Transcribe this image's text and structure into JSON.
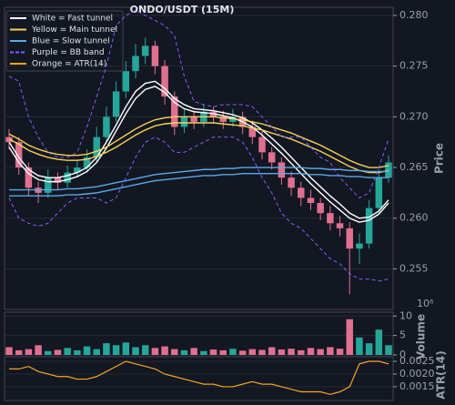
{
  "chart_data": {
    "type": "candlestick",
    "title": "ONDO/USDT (15M)",
    "y_label": "Price",
    "up_color": "#26a69a",
    "down_color": "#e0708f",
    "grid": true,
    "ylim": [
      0.251,
      0.2808
    ],
    "yticks": [
      {
        "value": 0.255,
        "label": "0.255"
      },
      {
        "value": 0.26,
        "label": "0.260"
      },
      {
        "value": 0.265,
        "label": "0.265"
      },
      {
        "value": 0.27,
        "label": "0.270"
      },
      {
        "value": 0.275,
        "label": "0.275"
      },
      {
        "value": 0.28,
        "label": "0.280"
      }
    ],
    "open": [
      0.268,
      0.2675,
      0.265,
      0.263,
      0.2625,
      0.264,
      0.2635,
      0.2645,
      0.265,
      0.266,
      0.268,
      0.27,
      0.2725,
      0.2745,
      0.276,
      0.277,
      0.275,
      0.272,
      0.269,
      0.27,
      0.2695,
      0.2705,
      0.27,
      0.2695,
      0.27,
      0.269,
      0.268,
      0.2665,
      0.2655,
      0.264,
      0.263,
      0.262,
      0.2615,
      0.2605,
      0.2595,
      0.259,
      0.257,
      0.2575,
      0.261,
      0.264
    ],
    "high": [
      0.2688,
      0.268,
      0.2655,
      0.2636,
      0.2648,
      0.2645,
      0.2652,
      0.2658,
      0.2668,
      0.269,
      0.271,
      0.2735,
      0.2755,
      0.2772,
      0.2778,
      0.2775,
      0.2756,
      0.2725,
      0.2708,
      0.2706,
      0.2712,
      0.271,
      0.2706,
      0.2708,
      0.2705,
      0.2696,
      0.2686,
      0.267,
      0.266,
      0.2646,
      0.2636,
      0.2628,
      0.262,
      0.2612,
      0.2602,
      0.2596,
      0.2585,
      0.2618,
      0.2648,
      0.2662
    ],
    "low": [
      0.2668,
      0.2643,
      0.2622,
      0.2615,
      0.262,
      0.2628,
      0.263,
      0.264,
      0.2645,
      0.2655,
      0.2675,
      0.2695,
      0.2718,
      0.2738,
      0.2752,
      0.2742,
      0.2712,
      0.2682,
      0.2684,
      0.2688,
      0.269,
      0.2693,
      0.2688,
      0.269,
      0.2683,
      0.2673,
      0.2658,
      0.2648,
      0.2633,
      0.2622,
      0.2612,
      0.2608,
      0.2598,
      0.2588,
      0.2582,
      0.2525,
      0.2555,
      0.257,
      0.2605,
      0.2635
    ],
    "close": [
      0.2675,
      0.265,
      0.263,
      0.2625,
      0.264,
      0.2635,
      0.2645,
      0.265,
      0.266,
      0.268,
      0.27,
      0.2725,
      0.2745,
      0.276,
      0.277,
      0.275,
      0.272,
      0.269,
      0.27,
      0.2695,
      0.2705,
      0.27,
      0.2695,
      0.27,
      0.269,
      0.268,
      0.2665,
      0.2655,
      0.264,
      0.263,
      0.262,
      0.2615,
      0.2605,
      0.2595,
      0.259,
      0.257,
      0.2575,
      0.261,
      0.264,
      0.2655
    ],
    "lines": [
      {
        "name": "White = Fast tunnel",
        "color": "#ffffff",
        "dash": false,
        "upper": [
          0.2675,
          0.266,
          0.2648,
          0.2642,
          0.264,
          0.264,
          0.2642,
          0.2645,
          0.265,
          0.266,
          0.2675,
          0.2692,
          0.271,
          0.2725,
          0.2733,
          0.2735,
          0.2728,
          0.2718,
          0.2712,
          0.2708,
          0.2707,
          0.2706,
          0.2704,
          0.2702,
          0.2699,
          0.2694,
          0.2687,
          0.2679,
          0.267,
          0.266,
          0.265,
          0.264,
          0.2631,
          0.2622,
          0.2614,
          0.2605,
          0.26,
          0.2601,
          0.2607,
          0.2618
        ],
        "lower": [
          0.267,
          0.2655,
          0.2644,
          0.2638,
          0.2636,
          0.2636,
          0.2638,
          0.2641,
          0.2646,
          0.2655,
          0.2669,
          0.2686,
          0.2703,
          0.2718,
          0.2727,
          0.273,
          0.2724,
          0.2714,
          0.2708,
          0.2705,
          0.2704,
          0.2703,
          0.2701,
          0.2699,
          0.2695,
          0.269,
          0.2682,
          0.2673,
          0.2664,
          0.2654,
          0.2644,
          0.2634,
          0.2625,
          0.2616,
          0.2608,
          0.26,
          0.2596,
          0.2598,
          0.2604,
          0.2615
        ]
      },
      {
        "name": "Yellow = Main tunnel",
        "color": "#f5d25a",
        "dash": false,
        "upper": [
          0.2683,
          0.2678,
          0.2672,
          0.2668,
          0.2665,
          0.2663,
          0.2662,
          0.2662,
          0.2663,
          0.2666,
          0.267,
          0.2676,
          0.2682,
          0.2688,
          0.2693,
          0.2697,
          0.2699,
          0.27,
          0.27,
          0.27,
          0.27,
          0.27,
          0.2699,
          0.2698,
          0.2697,
          0.2695,
          0.2693,
          0.269,
          0.2687,
          0.2684,
          0.268,
          0.2676,
          0.2672,
          0.2667,
          0.2662,
          0.2657,
          0.2653,
          0.265,
          0.265,
          0.2652
        ],
        "lower": [
          0.2678,
          0.2673,
          0.2667,
          0.2663,
          0.266,
          0.2658,
          0.2657,
          0.2657,
          0.2658,
          0.2661,
          0.2665,
          0.267,
          0.2676,
          0.2682,
          0.2687,
          0.2691,
          0.2693,
          0.2694,
          0.2694,
          0.2694,
          0.2694,
          0.2694,
          0.2693,
          0.2692,
          0.2691,
          0.2689,
          0.2687,
          0.2684,
          0.2681,
          0.2678,
          0.2674,
          0.267,
          0.2666,
          0.2661,
          0.2656,
          0.2651,
          0.2647,
          0.2645,
          0.2645,
          0.2647
        ]
      },
      {
        "name": "Blue = Slow tunnel",
        "color": "#5aa9e6",
        "dash": false,
        "upper": [
          0.2628,
          0.2628,
          0.2628,
          0.2628,
          0.2628,
          0.2628,
          0.2629,
          0.2629,
          0.263,
          0.2631,
          0.2633,
          0.2635,
          0.2637,
          0.2639,
          0.2641,
          0.2643,
          0.2644,
          0.2645,
          0.2646,
          0.2647,
          0.2648,
          0.2648,
          0.2649,
          0.2649,
          0.265,
          0.265,
          0.265,
          0.265,
          0.265,
          0.265,
          0.265,
          0.2649,
          0.2649,
          0.2648,
          0.2648,
          0.2647,
          0.2647,
          0.2646,
          0.2646,
          0.2646
        ],
        "lower": [
          0.2622,
          0.2622,
          0.2622,
          0.2622,
          0.2622,
          0.2622,
          0.2623,
          0.2623,
          0.2624,
          0.2625,
          0.2627,
          0.2629,
          0.2631,
          0.2633,
          0.2635,
          0.2637,
          0.2638,
          0.2639,
          0.264,
          0.2641,
          0.2642,
          0.2642,
          0.2643,
          0.2643,
          0.2644,
          0.2644,
          0.2644,
          0.2644,
          0.2644,
          0.2644,
          0.2644,
          0.2643,
          0.2643,
          0.2642,
          0.2642,
          0.2641,
          0.2641,
          0.264,
          0.264,
          0.264
        ]
      },
      {
        "name": "Purple = BB band",
        "color": "#7b61ff",
        "dash": true,
        "upper": [
          0.274,
          0.2735,
          0.27,
          0.268,
          0.2665,
          0.266,
          0.266,
          0.2665,
          0.269,
          0.272,
          0.275,
          0.279,
          0.28,
          0.2805,
          0.28,
          0.2795,
          0.279,
          0.278,
          0.274,
          0.2715,
          0.2712,
          0.271,
          0.2712,
          0.2712,
          0.2712,
          0.271,
          0.27,
          0.269,
          0.268,
          0.268,
          0.268,
          0.267,
          0.266,
          0.2655,
          0.264,
          0.263,
          0.262,
          0.2625,
          0.265,
          0.2678
        ],
        "lower": [
          0.262,
          0.26,
          0.2595,
          0.2592,
          0.2595,
          0.2605,
          0.2615,
          0.262,
          0.262,
          0.262,
          0.2615,
          0.262,
          0.264,
          0.266,
          0.2675,
          0.268,
          0.2675,
          0.2665,
          0.2665,
          0.267,
          0.2675,
          0.268,
          0.268,
          0.268,
          0.2675,
          0.266,
          0.264,
          0.2625,
          0.2605,
          0.2595,
          0.259,
          0.258,
          0.257,
          0.256,
          0.2555,
          0.2545,
          0.254,
          0.254,
          0.2538,
          0.254
        ]
      }
    ],
    "atr_legend": {
      "name": "Orange = ATR(14)",
      "color": "#f5a623"
    },
    "volume": {
      "y_label": "Volume",
      "offset_label": "10⁶",
      "ylim": [
        0,
        11
      ],
      "yticks": [
        0,
        5,
        10
      ],
      "values": [
        2,
        1.2,
        1.5,
        2.5,
        1,
        1.3,
        1.8,
        1.2,
        2.2,
        1.5,
        3,
        2.5,
        3.2,
        2,
        2.5,
        1.8,
        2.2,
        1.5,
        1.2,
        1.8,
        1,
        1.4,
        1.2,
        1.6,
        1.1,
        1.5,
        1.3,
        2,
        1.4,
        1.6,
        1.2,
        1.8,
        1.5,
        2,
        1.6,
        9.2,
        4.5,
        3,
        6.5,
        2.5
      ]
    },
    "atr": {
      "y_label": "ATR(14)",
      "color": "#f5a623",
      "ylim": [
        0.00096,
        0.00268
      ],
      "yticks": [
        {
          "value": 0.0015,
          "label": "0.0015"
        },
        {
          "value": 0.002,
          "label": "0.0020"
        },
        {
          "value": 0.0025,
          "label": "0.0025"
        }
      ],
      "values": [
        0.0022,
        0.0022,
        0.0023,
        0.0021,
        0.002,
        0.0019,
        0.0019,
        0.0018,
        0.0018,
        0.0019,
        0.0021,
        0.0023,
        0.0025,
        0.0024,
        0.0023,
        0.0022,
        0.002,
        0.0019,
        0.0018,
        0.0017,
        0.0016,
        0.0016,
        0.0015,
        0.0015,
        0.0016,
        0.0017,
        0.0016,
        0.0016,
        0.0015,
        0.0014,
        0.0013,
        0.0013,
        0.0013,
        0.0012,
        0.0013,
        0.0015,
        0.0024,
        0.0025,
        0.0025,
        0.0024
      ]
    }
  }
}
